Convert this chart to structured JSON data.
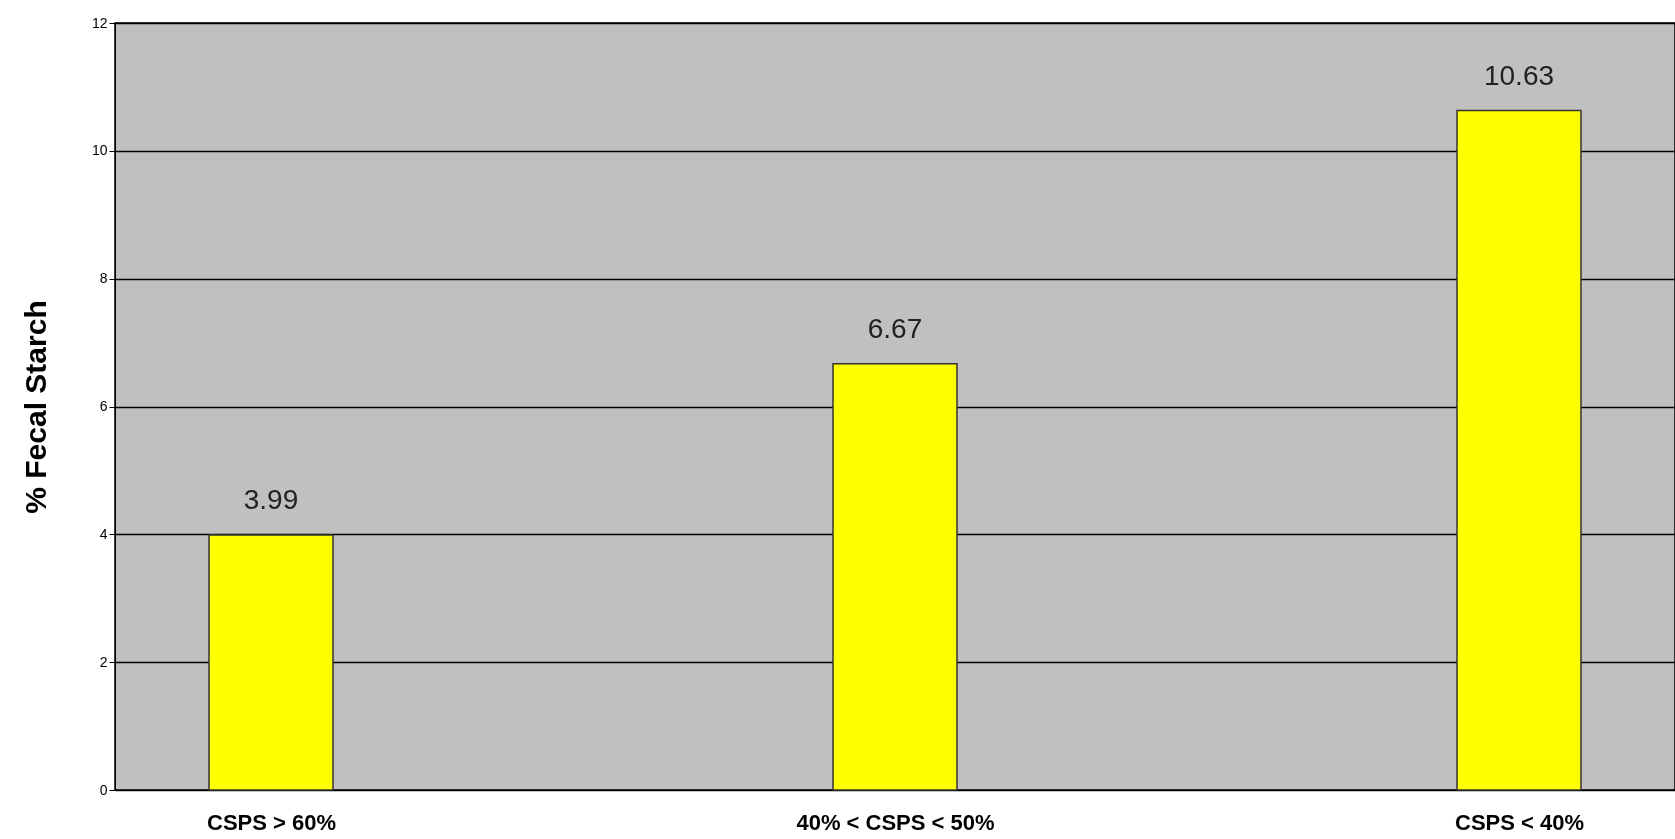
{
  "chart_data": {
    "type": "bar",
    "ylabel": "% Fecal Starch",
    "categories": [
      "CSPS > 60%",
      "40% < CSPS < 50%",
      "CSPS < 40%"
    ],
    "values": [
      3.99,
      6.67,
      10.63
    ],
    "color": "#ffff00",
    "ylim": [
      0,
      12
    ],
    "yticks": [
      0,
      2,
      4,
      6,
      8,
      10,
      12
    ],
    "grid": "y",
    "data_labels": true
  }
}
